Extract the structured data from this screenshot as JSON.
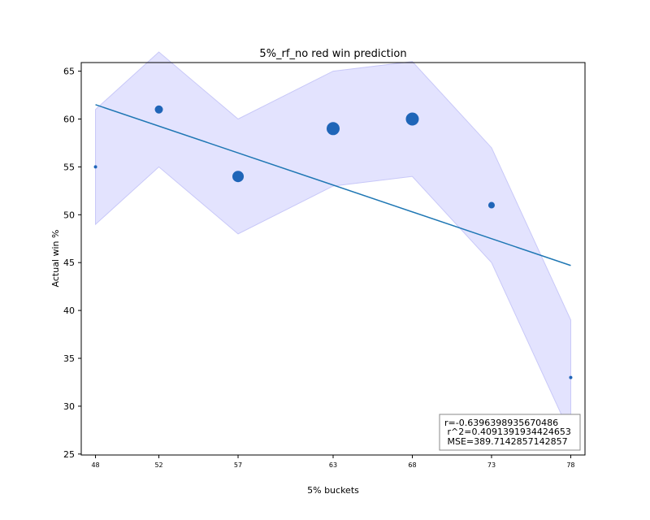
{
  "chart_data": {
    "type": "scatter",
    "title": "5%_rf_no red win prediction",
    "xlabel": "5% buckets",
    "ylabel": "Actual win %",
    "x_ticks": [
      "48",
      "52",
      "57",
      "63",
      "68",
      "73",
      "78"
    ],
    "y_ticks": [
      "25",
      "30",
      "35",
      "40",
      "45",
      "50",
      "55",
      "60",
      "65"
    ],
    "ylim": [
      24.9,
      65.9
    ],
    "xlim": [
      47.1,
      78.9
    ],
    "grid": false,
    "points": [
      {
        "x": 48,
        "y": 55,
        "size": 2
      },
      {
        "x": 52,
        "y": 61,
        "size": 5
      },
      {
        "x": 57,
        "y": 54,
        "size": 7
      },
      {
        "x": 63,
        "y": 59,
        "size": 8
      },
      {
        "x": 68,
        "y": 60,
        "size": 8
      },
      {
        "x": 73,
        "y": 51,
        "size": 4
      },
      {
        "x": 78,
        "y": 33,
        "size": 2
      }
    ],
    "band": {
      "x": [
        48,
        52,
        57,
        63,
        68,
        73,
        78
      ],
      "upper": [
        61,
        67,
        60,
        65,
        66,
        57,
        39
      ],
      "lower": [
        49,
        55,
        48,
        53,
        54,
        45,
        27
      ]
    },
    "fit_line": {
      "x": [
        48,
        78
      ],
      "y": [
        61.5,
        44.7
      ]
    },
    "stats_lines": [
      "r=-0.6396398935670486",
      " r^2=0.4091391934424653",
      " MSE=389.7142857142857"
    ],
    "colors": {
      "points": "#1f65b8",
      "line": "#1f77b4",
      "band_fill": "#e3e3fe",
      "band_edge": "#c8c8f8"
    }
  }
}
